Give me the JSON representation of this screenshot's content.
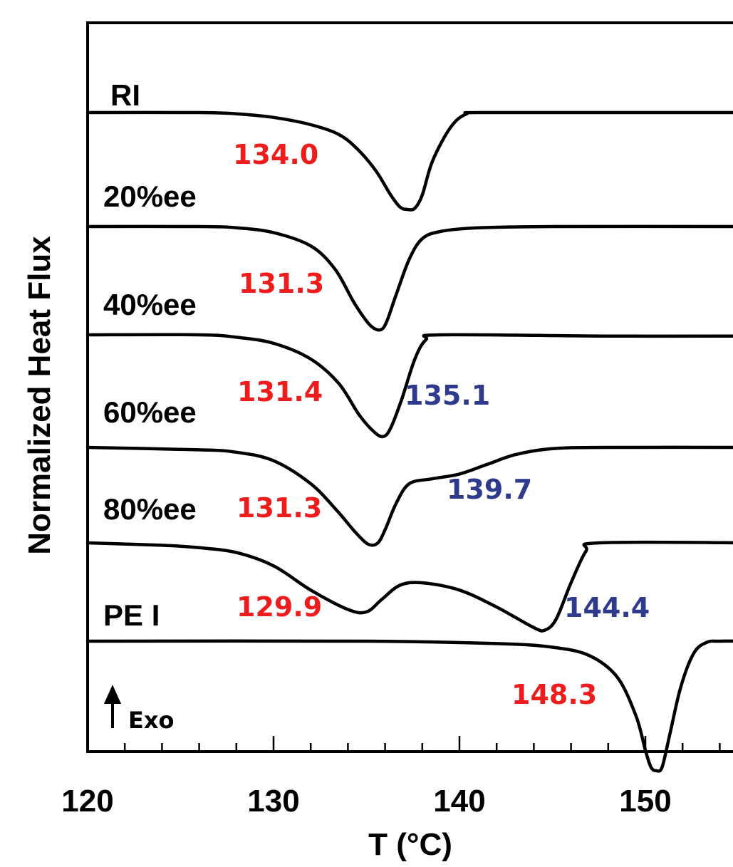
{
  "chart_data": {
    "type": "line",
    "xlabel": "T (°C)",
    "ylabel": "Normalized Heat Flux",
    "xlim": [
      120,
      155.5
    ],
    "x_ticks": [
      120,
      130,
      140,
      150
    ],
    "minor_tick_step": 2,
    "grid": false,
    "legend": "none",
    "exo_label": "Exo",
    "colors": {
      "curve": "#000000",
      "red_peak": "#ee1c1c",
      "blue_peak": "#2e3a8c"
    },
    "series": [
      {
        "name": "RI",
        "points": [
          [
            120,
            0.0
          ],
          [
            126,
            0.0
          ],
          [
            128,
            -0.01
          ],
          [
            130,
            -0.04
          ],
          [
            132,
            -0.1
          ],
          [
            133.5,
            -0.18
          ],
          [
            134.5,
            -0.3
          ],
          [
            135.5,
            -0.48
          ],
          [
            136.3,
            -0.68
          ],
          [
            136.8,
            -0.78
          ],
          [
            137.2,
            -0.8
          ],
          [
            137.6,
            -0.79
          ],
          [
            138.0,
            -0.68
          ],
          [
            138.5,
            -0.42
          ],
          [
            139.2,
            -0.2
          ],
          [
            139.8,
            -0.07
          ],
          [
            140.4,
            -0.01
          ],
          [
            141,
            0.0
          ],
          [
            148,
            0.0
          ],
          [
            155.5,
            0.0
          ]
        ],
        "peaks": [
          {
            "label": "134.0",
            "color": "red"
          }
        ]
      },
      {
        "name": "20%ee",
        "points": [
          [
            120,
            0.0
          ],
          [
            126,
            0.0
          ],
          [
            128,
            -0.01
          ],
          [
            130,
            -0.05
          ],
          [
            132,
            -0.16
          ],
          [
            133.3,
            -0.35
          ],
          [
            134.3,
            -0.62
          ],
          [
            135.0,
            -0.78
          ],
          [
            135.4,
            -0.84
          ],
          [
            135.8,
            -0.85
          ],
          [
            136.1,
            -0.78
          ],
          [
            136.6,
            -0.56
          ],
          [
            137.3,
            -0.27
          ],
          [
            138.0,
            -0.1
          ],
          [
            139.0,
            -0.04
          ],
          [
            141,
            -0.01
          ],
          [
            145,
            0.0
          ],
          [
            155.5,
            0.0
          ]
        ],
        "peaks": [
          {
            "label": "131.3",
            "color": "red"
          }
        ]
      },
      {
        "name": "40%ee",
        "points": [
          [
            120,
            0.0
          ],
          [
            126,
            0.0
          ],
          [
            128,
            -0.02
          ],
          [
            130,
            -0.07
          ],
          [
            132,
            -0.2
          ],
          [
            133.5,
            -0.4
          ],
          [
            134.6,
            -0.66
          ],
          [
            135.4,
            -0.8
          ],
          [
            135.9,
            -0.84
          ],
          [
            136.3,
            -0.77
          ],
          [
            136.9,
            -0.53
          ],
          [
            137.6,
            -0.2
          ],
          [
            138.2,
            -0.04
          ],
          [
            139,
            0.0
          ],
          [
            148,
            -0.01
          ],
          [
            155.5,
            -0.01
          ]
        ],
        "peaks": [
          {
            "label": "131.4",
            "color": "red"
          },
          {
            "label": "135.1",
            "color": "blue"
          }
        ]
      },
      {
        "name": "60%ee",
        "points": [
          [
            120,
            0.0
          ],
          [
            126,
            -0.02
          ],
          [
            128,
            -0.04
          ],
          [
            130,
            -0.11
          ],
          [
            132,
            -0.3
          ],
          [
            133.4,
            -0.52
          ],
          [
            134.4,
            -0.7
          ],
          [
            135.1,
            -0.8
          ],
          [
            135.6,
            -0.79
          ],
          [
            136.0,
            -0.68
          ],
          [
            136.6,
            -0.46
          ],
          [
            137.3,
            -0.3
          ],
          [
            138.5,
            -0.26
          ],
          [
            140,
            -0.22
          ],
          [
            141.5,
            -0.14
          ],
          [
            143,
            -0.06
          ],
          [
            145,
            -0.01
          ],
          [
            148,
            0.0
          ],
          [
            155.5,
            0.0
          ]
        ],
        "peaks": [
          {
            "label": "131.3",
            "color": "red"
          },
          {
            "label": "139.7",
            "color": "blue"
          }
        ]
      },
      {
        "name": "80%ee",
        "points": [
          [
            120,
            0.0
          ],
          [
            124,
            -0.02
          ],
          [
            126,
            -0.04
          ],
          [
            128,
            -0.08
          ],
          [
            130,
            -0.19
          ],
          [
            132,
            -0.39
          ],
          [
            134,
            -0.55
          ],
          [
            135.0,
            -0.57
          ],
          [
            135.8,
            -0.47
          ],
          [
            136.8,
            -0.35
          ],
          [
            138,
            -0.33
          ],
          [
            140,
            -0.39
          ],
          [
            142,
            -0.53
          ],
          [
            144,
            -0.7
          ],
          [
            144.6,
            -0.72
          ],
          [
            145.2,
            -0.63
          ],
          [
            146,
            -0.33
          ],
          [
            146.8,
            -0.07
          ],
          [
            147.5,
            0.0
          ],
          [
            155.5,
            0.0
          ]
        ],
        "peaks": [
          {
            "label": "129.9",
            "color": "red"
          },
          {
            "label": "144.4",
            "color": "blue"
          }
        ]
      },
      {
        "name": "PE I",
        "points": [
          [
            120,
            0.0
          ],
          [
            135,
            0.0
          ],
          [
            142,
            -0.02
          ],
          [
            145,
            -0.05
          ],
          [
            147,
            -0.12
          ],
          [
            148.5,
            -0.3
          ],
          [
            149.5,
            -0.62
          ],
          [
            150.0,
            -0.9
          ],
          [
            150.3,
            -1.04
          ],
          [
            150.6,
            -1.07
          ],
          [
            150.9,
            -1.04
          ],
          [
            151.3,
            -0.78
          ],
          [
            151.9,
            -0.38
          ],
          [
            152.6,
            -0.1
          ],
          [
            153.3,
            -0.01
          ],
          [
            154,
            0.0
          ],
          [
            155.5,
            0.0
          ]
        ],
        "peaks": [
          {
            "label": "148.3",
            "color": "red"
          }
        ]
      }
    ]
  }
}
